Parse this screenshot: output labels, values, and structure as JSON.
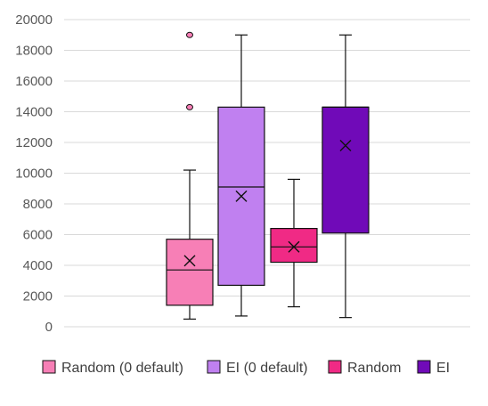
{
  "chart_data": {
    "type": "box",
    "ylim": [
      0,
      20000
    ],
    "yticks": [
      0,
      2000,
      4000,
      6000,
      8000,
      10000,
      12000,
      14000,
      16000,
      18000,
      20000
    ],
    "grid": true,
    "legend_position": "bottom",
    "series": [
      {
        "name": "Random (0 default)",
        "color": "#f77fb6",
        "stroke": "#111111",
        "min": 500,
        "q1": 1400,
        "median": 3700,
        "q3": 5700,
        "max": 10200,
        "mean": 4300,
        "outliers": [
          14300,
          19000
        ]
      },
      {
        "name": "EI (0 default)",
        "color": "#c080f0",
        "stroke": "#111111",
        "min": 700,
        "q1": 2700,
        "median": 9100,
        "q3": 14300,
        "max": 19000,
        "mean": 8500,
        "outliers": []
      },
      {
        "name": "Random",
        "color": "#f02a85",
        "stroke": "#111111",
        "min": 1300,
        "q1": 4200,
        "median": 5200,
        "q3": 6400,
        "max": 9600,
        "mean": 5200,
        "outliers": []
      },
      {
        "name": "EI",
        "color": "#700ab8",
        "stroke": "#111111",
        "min": 600,
        "q1": 6100,
        "median": 14300,
        "q3": 14300,
        "max": 19000,
        "mean": 11800,
        "outliers": []
      }
    ]
  }
}
